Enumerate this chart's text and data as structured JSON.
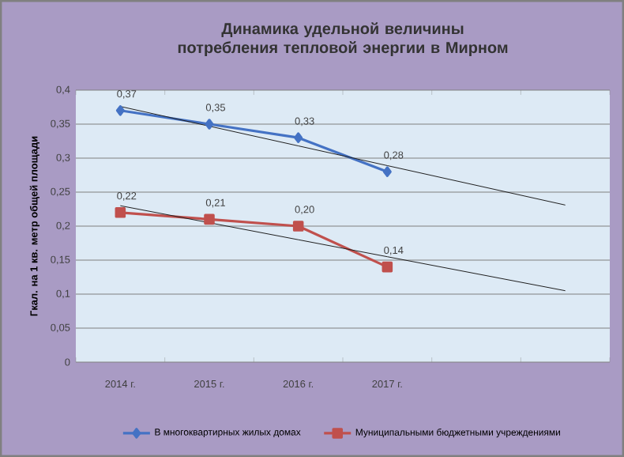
{
  "chart_data": {
    "type": "line",
    "title": "Динамика удельной величины потребления тепловой энергии в Мирном",
    "ylabel": "Гкал. на 1 кв. метр общей площади",
    "categories": [
      "2014 г.",
      "2015 г.",
      "2016 г.",
      "2017 г.",
      null,
      null
    ],
    "series": [
      {
        "name": "В многоквартирных жилых домах",
        "color": "#4472c4",
        "marker": "diamond",
        "values": [
          0.37,
          0.35,
          0.33,
          0.28,
          null,
          null
        ],
        "value_labels": [
          "0,37",
          "0,35",
          "0,33",
          "0,28",
          null,
          null
        ]
      },
      {
        "name": "Муниципальными бюджетными учреждениями",
        "color": "#c0504d",
        "marker": "square",
        "values": [
          0.22,
          0.21,
          0.2,
          0.14,
          null,
          null
        ],
        "value_labels": [
          "0,22",
          "0,21",
          "0,20",
          "0,14",
          null,
          null
        ]
      },
      {
        "color": "#1f1f1f",
        "marker": "none",
        "values": [
          0.376,
          0.347,
          0.318,
          0.289,
          0.26,
          0.231
        ]
      },
      {
        "color": "#1f1f1f",
        "marker": "none",
        "values": [
          0.23,
          0.205,
          0.18,
          0.155,
          0.13,
          0.105
        ]
      }
    ],
    "ylim": [
      0,
      0.4
    ],
    "yticks": [
      0,
      {
        "value": 0.05,
        "label": "0,05"
      },
      {
        "value": 0.1,
        "label": "0,1"
      },
      {
        "value": 0.15,
        "label": "0,15"
      },
      {
        "value": 0.2,
        "label": "0,2"
      },
      {
        "value": 0.25,
        "label": "0,25"
      },
      {
        "value": 0.3,
        "label": "0,3"
      },
      {
        "value": 0.35,
        "label": "0,35"
      },
      {
        "value": 0.4,
        "label": "0,4"
      }
    ],
    "grid": "y",
    "legend": "bottom"
  }
}
